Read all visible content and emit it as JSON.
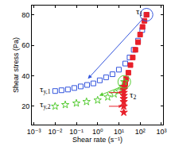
{
  "chart_data": {
    "type": "scatter",
    "x_label": "Shear rate (s⁻¹)",
    "y_label": "Shear stress (Pa)",
    "log": "x",
    "grid": false,
    "xlim": [
      0.0008,
      1200
    ],
    "ylim": [
      8,
      86
    ],
    "xticks": [
      {
        "value": 0.001,
        "label": "10⁻³"
      },
      {
        "value": 0.01,
        "label": "10⁻²"
      },
      {
        "value": 0.1,
        "label": "10⁻¹"
      },
      {
        "value": 1,
        "label": "10⁰"
      },
      {
        "value": 10,
        "label": "10¹"
      },
      {
        "value": 100,
        "label": "10²"
      },
      {
        "value": 1000,
        "label": "10³"
      }
    ],
    "yticks": [
      20,
      40,
      60,
      80
    ],
    "series": [
      {
        "color": "#3355dd",
        "marker": "square-open",
        "x": [
          0.01,
          0.02,
          0.04,
          0.08,
          0.16,
          0.32,
          0.63,
          1.26,
          2.5,
          5,
          10,
          20,
          32,
          50,
          80,
          126,
          200
        ],
        "values": [
          30,
          30.5,
          31,
          32,
          33,
          34,
          35,
          37,
          39,
          41,
          44,
          48,
          52,
          57,
          63,
          70,
          80
        ]
      },
      {
        "color": "#e8202a",
        "marker": "square",
        "x": [
          200,
          160,
          130,
          100,
          80,
          60,
          45,
          35,
          28,
          22,
          20,
          19
        ],
        "values": [
          80,
          76,
          72,
          67,
          62,
          57,
          52,
          47,
          42,
          38,
          35,
          33
        ]
      },
      {
        "color": "#55cc33",
        "marker": "star-open",
        "x": [
          0.01,
          0.03,
          0.1,
          0.3,
          1,
          3,
          6,
          10,
          15,
          18
        ],
        "values": [
          20,
          21,
          22,
          23,
          24,
          26,
          28,
          30,
          33,
          36
        ]
      },
      {
        "color": "#e8202a",
        "marker": "star",
        "x": [
          17,
          17,
          17,
          17,
          17,
          17,
          17,
          17
        ],
        "values": [
          33,
          31,
          29,
          27,
          25,
          23,
          20,
          16
        ]
      }
    ],
    "annotations": [
      {
        "text": "τ",
        "subscript": "1"
      },
      {
        "text": "τ",
        "subscript": "2"
      },
      {
        "text": "τ",
        "subscript": "y,1"
      },
      {
        "text": "τ",
        "subscript": "y,2"
      }
    ]
  }
}
